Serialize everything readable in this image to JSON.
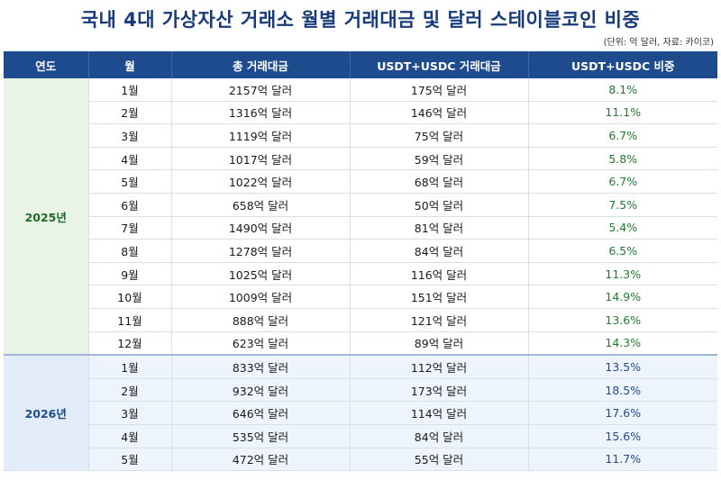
{
  "title": "국내 4대 가상자산 거래소 월별 거래대금 및 달러 스테이블코인 비중",
  "unit_note": "(단위: 억 달러, 자료: 카이코)",
  "columns": [
    "연도",
    "월",
    "총 거래대금",
    "USDT+USDC 거래대금",
    "USDT+USDC 비중"
  ],
  "groups": [
    {
      "year": "2025년",
      "rows": [
        {
          "month": "1월",
          "total": "2157억 달러",
          "stable": "175억 달러",
          "ratio": "8.1%"
        },
        {
          "month": "2월",
          "total": "1316억 달러",
          "stable": "146억 달러",
          "ratio": "11.1%"
        },
        {
          "month": "3월",
          "total": "1119억 달러",
          "stable": "75억 달러",
          "ratio": "6.7%"
        },
        {
          "month": "4월",
          "total": "1017억 달러",
          "stable": "59억 달러",
          "ratio": "5.8%"
        },
        {
          "month": "5월",
          "total": "1022억 달러",
          "stable": "68억 달러",
          "ratio": "6.7%"
        },
        {
          "month": "6월",
          "total": "658억 달러",
          "stable": "50억 달러",
          "ratio": "7.5%"
        },
        {
          "month": "7월",
          "total": "1490억 달러",
          "stable": "81억 달러",
          "ratio": "5.4%"
        },
        {
          "month": "8월",
          "total": "1278억 달러",
          "stable": "84억 달러",
          "ratio": "6.5%"
        },
        {
          "month": "9월",
          "total": "1025억 달러",
          "stable": "116억 달러",
          "ratio": "11.3%"
        },
        {
          "month": "10월",
          "total": "1009억 달러",
          "stable": "151억 달러",
          "ratio": "14.9%"
        },
        {
          "month": "11월",
          "total": "888억 달러",
          "stable": "121억 달러",
          "ratio": "13.6%"
        },
        {
          "month": "12월",
          "total": "623억 달러",
          "stable": "89억 달러",
          "ratio": "14.3%"
        }
      ]
    },
    {
      "year": "2026년",
      "rows": [
        {
          "month": "1월",
          "total": "833억 달러",
          "stable": "112억 달러",
          "ratio": "13.5%"
        },
        {
          "month": "2월",
          "total": "932억 달러",
          "stable": "173억 달러",
          "ratio": "18.5%"
        },
        {
          "month": "3월",
          "total": "646억 달러",
          "stable": "114억 달러",
          "ratio": "17.6%"
        },
        {
          "month": "4월",
          "total": "535억 달러",
          "stable": "84억 달러",
          "ratio": "15.6%"
        },
        {
          "month": "5월",
          "total": "472억 달러",
          "stable": "55억 달러",
          "ratio": "11.7%"
        }
      ]
    }
  ]
}
